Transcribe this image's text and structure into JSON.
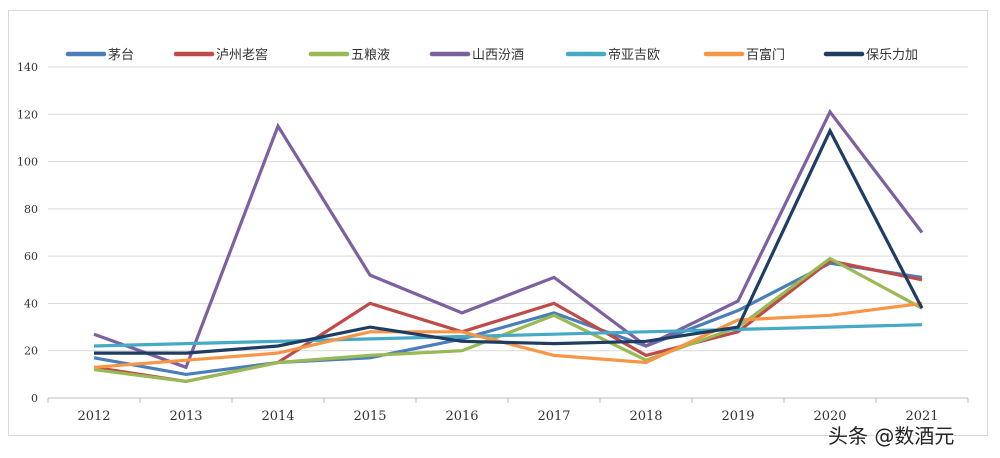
{
  "chart_data": {
    "type": "line",
    "categories": [
      "2012",
      "2013",
      "2014",
      "2015",
      "2016",
      "2017",
      "2018",
      "2019",
      "2020",
      "2021"
    ],
    "ylim": [
      0,
      140
    ],
    "yticks": [
      0,
      20,
      40,
      60,
      80,
      100,
      120,
      140
    ],
    "grid": true,
    "legend_position": "top",
    "series": [
      {
        "name": "茅台",
        "color": "#4a7ebb",
        "values": [
          17,
          10,
          15,
          17,
          25,
          36,
          22,
          37,
          57,
          51
        ]
      },
      {
        "name": "泸州老窖",
        "color": "#be4b48",
        "values": [
          13,
          7,
          15,
          40,
          28,
          40,
          18,
          28,
          58,
          50
        ]
      },
      {
        "name": "五粮液",
        "color": "#98b954",
        "values": [
          12,
          7,
          15,
          18,
          20,
          35,
          16,
          30,
          59,
          38
        ]
      },
      {
        "name": "山西汾酒",
        "color": "#7d60a0",
        "values": [
          27,
          13,
          115,
          52,
          36,
          51,
          22,
          41,
          121,
          70
        ]
      },
      {
        "name": "帝亚吉欧",
        "color": "#46aac5",
        "values": [
          22,
          23,
          24,
          25,
          26,
          27,
          28,
          29,
          30,
          31
        ]
      },
      {
        "name": "百富门",
        "color": "#f79646",
        "values": [
          13,
          16,
          19,
          28,
          28,
          18,
          15,
          33,
          35,
          40
        ]
      },
      {
        "name": "保乐力加",
        "color": "#1f3d63",
        "values": [
          19,
          19,
          22,
          30,
          24,
          23,
          24,
          30,
          113,
          38
        ]
      }
    ]
  },
  "watermark": "头条 @数酒元"
}
